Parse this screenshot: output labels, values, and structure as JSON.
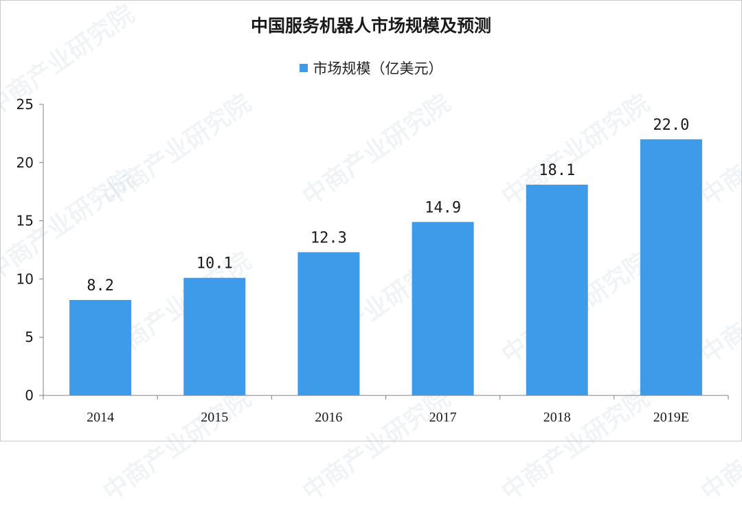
{
  "watermark_text": "中商产业研究院",
  "colors": {
    "bar": "#3d9be9",
    "axis": "#7f7f7f",
    "text": "#1a1a1a"
  },
  "chart_data": {
    "type": "bar",
    "title": "中国服务机器人市场规模及预测",
    "xlabel": "",
    "ylabel": "",
    "categories": [
      "2014",
      "2015",
      "2016",
      "2017",
      "2018",
      "2019E"
    ],
    "series": [
      {
        "name": "市场规模（亿美元）",
        "values": [
          8.2,
          10.1,
          12.3,
          14.9,
          18.1,
          22.0
        ]
      }
    ],
    "data_labels": [
      "8.2",
      "10.1",
      "12.3",
      "14.9",
      "18.1",
      "22.0"
    ],
    "ylim": [
      0,
      25
    ],
    "yticks": [
      0,
      5,
      10,
      15,
      20,
      25
    ],
    "grid": false,
    "legend": "top-center"
  }
}
